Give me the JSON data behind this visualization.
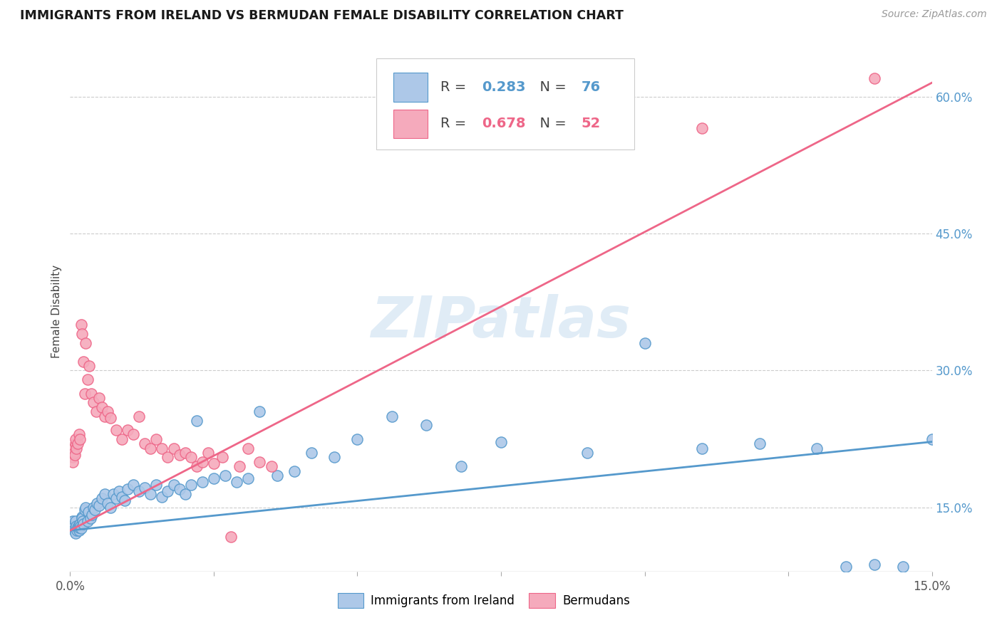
{
  "title": "IMMIGRANTS FROM IRELAND VS BERMUDAN FEMALE DISABILITY CORRELATION CHART",
  "source": "Source: ZipAtlas.com",
  "ylabel": "Female Disability",
  "x_min": 0.0,
  "x_max": 0.15,
  "y_min": 0.08,
  "y_max": 0.65,
  "y_ticks_right": [
    0.15,
    0.3,
    0.45,
    0.6
  ],
  "y_tick_labels_right": [
    "15.0%",
    "30.0%",
    "45.0%",
    "60.0%"
  ],
  "ireland_color": "#adc8e8",
  "bermuda_color": "#f5aabc",
  "ireland_line_color": "#5599cc",
  "bermuda_line_color": "#ee6688",
  "ireland_r": 0.283,
  "ireland_n": 76,
  "bermuda_r": 0.678,
  "bermuda_n": 52,
  "watermark": "ZIPatlas",
  "watermark_color": "#c8ddf0",
  "background_color": "#ffffff",
  "grid_color": "#cccccc",
  "ireland_scatter_x": [
    0.0004,
    0.0005,
    0.0006,
    0.0007,
    0.0008,
    0.0009,
    0.001,
    0.0011,
    0.0012,
    0.0013,
    0.0014,
    0.0015,
    0.0016,
    0.0017,
    0.0018,
    0.0019,
    0.002,
    0.0021,
    0.0022,
    0.0023,
    0.0025,
    0.0027,
    0.003,
    0.0032,
    0.0035,
    0.0038,
    0.004,
    0.0043,
    0.0046,
    0.005,
    0.0055,
    0.006,
    0.0065,
    0.007,
    0.0075,
    0.008,
    0.0085,
    0.009,
    0.0095,
    0.01,
    0.011,
    0.012,
    0.013,
    0.014,
    0.015,
    0.016,
    0.017,
    0.018,
    0.019,
    0.02,
    0.021,
    0.022,
    0.023,
    0.025,
    0.027,
    0.029,
    0.031,
    0.033,
    0.036,
    0.039,
    0.042,
    0.046,
    0.05,
    0.056,
    0.062,
    0.068,
    0.075,
    0.09,
    0.1,
    0.11,
    0.12,
    0.13,
    0.135,
    0.14,
    0.145,
    0.15
  ],
  "ireland_scatter_y": [
    0.135,
    0.13,
    0.128,
    0.126,
    0.124,
    0.122,
    0.135,
    0.13,
    0.125,
    0.128,
    0.13,
    0.125,
    0.128,
    0.132,
    0.13,
    0.127,
    0.14,
    0.138,
    0.135,
    0.132,
    0.148,
    0.15,
    0.135,
    0.145,
    0.138,
    0.142,
    0.15,
    0.148,
    0.155,
    0.152,
    0.16,
    0.165,
    0.155,
    0.15,
    0.165,
    0.16,
    0.168,
    0.162,
    0.158,
    0.17,
    0.175,
    0.168,
    0.172,
    0.165,
    0.175,
    0.162,
    0.168,
    0.175,
    0.17,
    0.165,
    0.175,
    0.245,
    0.178,
    0.182,
    0.185,
    0.178,
    0.182,
    0.255,
    0.185,
    0.19,
    0.21,
    0.205,
    0.225,
    0.25,
    0.24,
    0.195,
    0.222,
    0.21,
    0.33,
    0.215,
    0.22,
    0.215,
    0.085,
    0.088,
    0.085,
    0.225
  ],
  "bermuda_scatter_x": [
    0.0004,
    0.0005,
    0.0006,
    0.0007,
    0.0008,
    0.0009,
    0.001,
    0.0011,
    0.0013,
    0.0015,
    0.0017,
    0.0019,
    0.0021,
    0.0023,
    0.0025,
    0.0027,
    0.003,
    0.0033,
    0.0037,
    0.0041,
    0.0045,
    0.005,
    0.0055,
    0.006,
    0.0065,
    0.007,
    0.008,
    0.009,
    0.01,
    0.011,
    0.012,
    0.013,
    0.014,
    0.015,
    0.016,
    0.017,
    0.018,
    0.019,
    0.02,
    0.021,
    0.022,
    0.023,
    0.024,
    0.025,
    0.0265,
    0.028,
    0.0295,
    0.031,
    0.033,
    0.035,
    0.11,
    0.14
  ],
  "bermuda_scatter_y": [
    0.205,
    0.2,
    0.215,
    0.21,
    0.208,
    0.22,
    0.225,
    0.215,
    0.22,
    0.23,
    0.225,
    0.35,
    0.34,
    0.31,
    0.275,
    0.33,
    0.29,
    0.305,
    0.275,
    0.265,
    0.255,
    0.27,
    0.26,
    0.25,
    0.255,
    0.248,
    0.235,
    0.225,
    0.235,
    0.23,
    0.25,
    0.22,
    0.215,
    0.225,
    0.215,
    0.205,
    0.215,
    0.208,
    0.21,
    0.205,
    0.195,
    0.2,
    0.21,
    0.198,
    0.205,
    0.118,
    0.195,
    0.215,
    0.2,
    0.195,
    0.565,
    0.62
  ],
  "ireland_trendline_x": [
    0.0,
    0.15
  ],
  "ireland_trendline_y": [
    0.125,
    0.222
  ],
  "bermuda_trendline_x": [
    0.0,
    0.15
  ],
  "bermuda_trendline_y": [
    0.125,
    0.615
  ]
}
